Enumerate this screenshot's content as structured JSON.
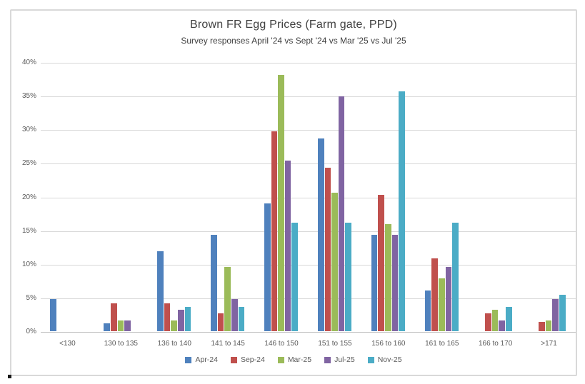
{
  "chart_data": {
    "type": "bar",
    "title": "Brown FR Egg Prices (Farm gate, PPD)",
    "subtitle": "Survey responses April '24 vs Sept '24 vs Mar '25 vs Jul '25",
    "categories": [
      "<130",
      "130 to 135",
      "136 to 140",
      "141 to 145",
      "146 to 150",
      "151 to 155",
      "156 to 160",
      "161 to 165",
      "166 to 170",
      ">171"
    ],
    "series": [
      {
        "name": "Apr-24",
        "color": "#4F81BD",
        "values": [
          4.8,
          1.2,
          11.9,
          14.3,
          19.0,
          28.6,
          14.3,
          6.0,
          0,
          0
        ]
      },
      {
        "name": "Sep-24",
        "color": "#C0504D",
        "values": [
          0,
          4.1,
          4.1,
          2.7,
          29.7,
          24.3,
          20.3,
          10.8,
          2.7,
          1.4
        ]
      },
      {
        "name": "Mar-25",
        "color": "#9BBB59",
        "values": [
          0,
          1.6,
          1.6,
          9.5,
          38.1,
          20.6,
          15.9,
          7.9,
          3.2,
          1.6
        ]
      },
      {
        "name": "Jul-25",
        "color": "#8064A2",
        "values": [
          0,
          1.6,
          3.2,
          4.8,
          25.4,
          34.9,
          14.3,
          9.5,
          1.6,
          4.8
        ]
      },
      {
        "name": "Nov-25",
        "color": "#4BACC6",
        "values": [
          0,
          0,
          3.6,
          3.6,
          16.1,
          16.1,
          35.7,
          16.1,
          3.6,
          5.4
        ]
      }
    ],
    "xlabel": "",
    "ylabel": "",
    "ylim": [
      0,
      40
    ],
    "y_tick_labels": [
      "0%",
      "5%",
      "10%",
      "15%",
      "20%",
      "25%",
      "30%",
      "35%",
      "40%"
    ],
    "y_tick_step": 5,
    "grid": "horizontal",
    "legend_position": "bottom"
  },
  "style_colors": {
    "gridline": "#d9d9d9",
    "axis_baseline": "#bfbfbf",
    "axis_text": "#595959",
    "title_text": "#404040",
    "frame_border": "#d9d9d9"
  }
}
